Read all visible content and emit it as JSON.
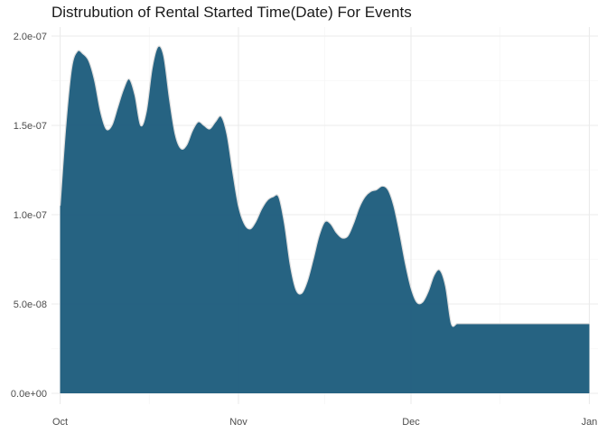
{
  "chart_data": {
    "type": "area",
    "title": "Distrubution of Rental Started Time(Date) For Events",
    "xlabel": "",
    "ylabel": "",
    "x_ticks": [
      {
        "label": "Oct",
        "day": 0
      },
      {
        "label": "Nov",
        "day": 31
      },
      {
        "label": "Dec",
        "day": 61
      },
      {
        "label": "Jan",
        "day": 92
      }
    ],
    "y_ticks": [
      {
        "label": "0.0e+00",
        "value": 0
      },
      {
        "label": "5.0e-08",
        "value": 5e-08
      },
      {
        "label": "1.0e-07",
        "value": 1e-07
      },
      {
        "label": "1.5e-07",
        "value": 1.5e-07
      },
      {
        "label": "2.0e-07",
        "value": 2e-07
      }
    ],
    "xlim_days": [
      -1.5,
      93.5
    ],
    "ylim": [
      0,
      2.03e-07
    ],
    "x_days": [
      0,
      1,
      2,
      3,
      4,
      5,
      6,
      7,
      8,
      9,
      10,
      11,
      12,
      13,
      14,
      15,
      16,
      17,
      18,
      19,
      20,
      21,
      22,
      23,
      24,
      25,
      26,
      27,
      28,
      29,
      30,
      31,
      32,
      33,
      34,
      35,
      36,
      37,
      38,
      39,
      40,
      41,
      42,
      43,
      44,
      45,
      46,
      47,
      48,
      49,
      50,
      51,
      52,
      53,
      54,
      55,
      56,
      57,
      58,
      59,
      60,
      61,
      62,
      63,
      64,
      65,
      66,
      67,
      68,
      69,
      70,
      71,
      72,
      73,
      74,
      75,
      76,
      77,
      78,
      79,
      80,
      81,
      82,
      83,
      84,
      85,
      86,
      87,
      88,
      89,
      90,
      91,
      92
    ],
    "density": [
      1.05e-07,
      1.5e-07,
      1.82e-07,
      1.915e-07,
      1.9e-07,
      1.86e-07,
      1.75e-07,
      1.58e-07,
      1.48e-07,
      1.5e-07,
      1.6e-07,
      1.7e-07,
      1.76e-07,
      1.67e-07,
      1.5e-07,
      1.58e-07,
      1.82e-07,
      1.94e-07,
      1.89e-07,
      1.65e-07,
      1.45e-07,
      1.37e-07,
      1.39e-07,
      1.47e-07,
      1.52e-07,
      1.5e-07,
      1.48e-07,
      1.52e-07,
      1.55e-07,
      1.45e-07,
      1.24e-07,
      1.05e-07,
      9.5e-08,
      9.2e-08,
      9.6e-08,
      1.03e-07,
      1.08e-07,
      1.1e-07,
      1.1e-07,
      9.5e-08,
      7.2e-08,
      5.8e-08,
      5.6e-08,
      6.3e-08,
      7.5e-08,
      8.8e-08,
      9.6e-08,
      9.5e-08,
      9e-08,
      8.7e-08,
      8.8e-08,
      9.5e-08,
      1.04e-07,
      1.1e-07,
      1.13e-07,
      1.14e-07,
      1.16e-07,
      1.14e-07,
      1.05e-07,
      9e-08,
      7.3e-08,
      5.9e-08,
      5.1e-08,
      5.1e-08,
      5.7e-08,
      6.6e-08,
      6.9e-08,
      6e-08,
      3.9e-08,
      3.9e-08,
      3.9e-08,
      3.9e-08,
      3.9e-08,
      3.9e-08,
      3.9e-08,
      3.9e-08,
      3.9e-08,
      3.9e-08,
      3.9e-08,
      3.9e-08,
      3.9e-08,
      3.9e-08,
      3.9e-08,
      3.9e-08,
      3.9e-08,
      3.9e-08,
      3.9e-08,
      3.9e-08,
      3.9e-08,
      3.9e-08,
      3.9e-08,
      3.9e-08,
      3.9e-08
    ],
    "fill_color": "#1a5b7b",
    "line_color": "#dcdcdc",
    "grid": true
  }
}
